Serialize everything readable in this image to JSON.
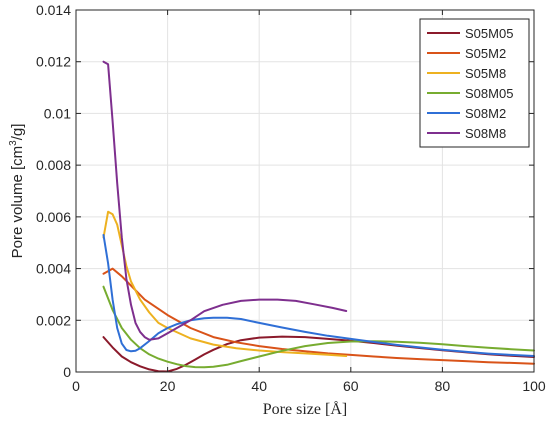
{
  "chart_data": {
    "type": "line",
    "xlabel": "Pore size [Å]",
    "ylabel_main": "Pore volume [cm",
    "ylabel_sup": "3",
    "ylabel_tail": "/g]",
    "xlim": [
      0,
      100
    ],
    "ylim": [
      0,
      0.014
    ],
    "xticks": [
      0,
      20,
      40,
      60,
      80,
      100
    ],
    "yticks": [
      0,
      0.002,
      0.004,
      0.006,
      0.008,
      0.01,
      0.012,
      0.014
    ],
    "xtick_labels": [
      "0",
      "20",
      "40",
      "60",
      "80",
      "100"
    ],
    "ytick_labels": [
      "0",
      "0.002",
      "0.004",
      "0.006",
      "0.008",
      "0.01",
      "0.012",
      "0.014"
    ],
    "grid": true,
    "legend_position": "top-right",
    "series": [
      {
        "name": "S05M05",
        "color": "#8b1a2b",
        "x": [
          6,
          8,
          10,
          12,
          14,
          16,
          18,
          20,
          22,
          24,
          26,
          28,
          30,
          33,
          36,
          40,
          45,
          50,
          55,
          60,
          65,
          70,
          75,
          80,
          85,
          90,
          95,
          100
        ],
        "y": [
          0.00135,
          0.00095,
          0.0006,
          0.00038,
          0.00022,
          0.0001,
          3e-05,
          2e-05,
          0.00012,
          0.00028,
          0.00048,
          0.00068,
          0.00086,
          0.00108,
          0.00123,
          0.00133,
          0.00137,
          0.00135,
          0.00128,
          0.00121,
          0.00112,
          0.00102,
          0.00093,
          0.00084,
          0.00076,
          0.00069,
          0.00063,
          0.00058
        ]
      },
      {
        "name": "S05M2",
        "color": "#d95319",
        "x": [
          6,
          8,
          10,
          15,
          20,
          25,
          30,
          35,
          40,
          45,
          50,
          55,
          60,
          65,
          70,
          75,
          80,
          85,
          90,
          95,
          100
        ],
        "y": [
          0.0038,
          0.004,
          0.0037,
          0.0028,
          0.0022,
          0.0017,
          0.00135,
          0.00115,
          0.001,
          0.00089,
          0.0008,
          0.00072,
          0.00066,
          0.0006,
          0.00054,
          0.0005,
          0.00046,
          0.00042,
          0.00038,
          0.00035,
          0.00032
        ]
      },
      {
        "name": "S05M8",
        "color": "#edb120",
        "x": [
          6,
          7,
          8,
          9,
          10,
          11,
          12,
          14,
          16,
          18,
          20,
          25,
          30,
          35,
          40,
          45,
          50,
          55,
          59
        ],
        "y": [
          0.0052,
          0.0062,
          0.0061,
          0.0057,
          0.0049,
          0.0041,
          0.0035,
          0.0028,
          0.0023,
          0.0019,
          0.0017,
          0.0013,
          0.00106,
          0.00092,
          0.00083,
          0.00077,
          0.00072,
          0.00067,
          0.00062
        ]
      },
      {
        "name": "S08M05",
        "color": "#77ac30",
        "x": [
          6,
          8,
          10,
          12,
          14,
          16,
          18,
          20,
          22,
          24,
          26,
          28,
          30,
          33,
          36,
          40,
          45,
          50,
          55,
          60,
          65,
          70,
          75,
          80,
          85,
          90,
          95,
          100
        ],
        "y": [
          0.0033,
          0.0024,
          0.0017,
          0.00125,
          0.00092,
          0.00068,
          0.00052,
          0.0004,
          0.0003,
          0.00023,
          0.00019,
          0.00018,
          0.0002,
          0.00028,
          0.00042,
          0.0006,
          0.00082,
          0.001,
          0.00112,
          0.00118,
          0.00119,
          0.00117,
          0.00113,
          0.00107,
          0.001,
          0.00094,
          0.00088,
          0.00083
        ]
      },
      {
        "name": "S08M2",
        "color": "#2f6fd6",
        "x": [
          6,
          7,
          8,
          9,
          10,
          11,
          12,
          13,
          14,
          16,
          18,
          20,
          22,
          25,
          28,
          30,
          33,
          36,
          40,
          45,
          50,
          55,
          60,
          65,
          70,
          75,
          80,
          85,
          90,
          95,
          100
        ],
        "y": [
          0.0053,
          0.0042,
          0.0028,
          0.0017,
          0.0011,
          0.00085,
          0.0008,
          0.00082,
          0.00092,
          0.0012,
          0.0015,
          0.0017,
          0.00185,
          0.002,
          0.00208,
          0.0021,
          0.0021,
          0.00205,
          0.0019,
          0.00172,
          0.00155,
          0.0014,
          0.00128,
          0.00116,
          0.00105,
          0.00095,
          0.00086,
          0.00078,
          0.00071,
          0.00066,
          0.00062
        ]
      },
      {
        "name": "S08M8",
        "color": "#7e2f8e",
        "x": [
          6,
          7,
          8,
          9,
          10,
          11,
          12,
          13,
          14,
          15,
          16,
          18,
          20,
          22,
          25,
          28,
          32,
          36,
          40,
          44,
          48,
          52,
          56,
          59
        ],
        "y": [
          0.012,
          0.0119,
          0.0097,
          0.0073,
          0.0052,
          0.0036,
          0.0026,
          0.0019,
          0.00155,
          0.00135,
          0.00125,
          0.0013,
          0.0015,
          0.0017,
          0.002,
          0.00235,
          0.0026,
          0.00275,
          0.0028,
          0.0028,
          0.00275,
          0.00262,
          0.00248,
          0.00236
        ]
      }
    ]
  }
}
